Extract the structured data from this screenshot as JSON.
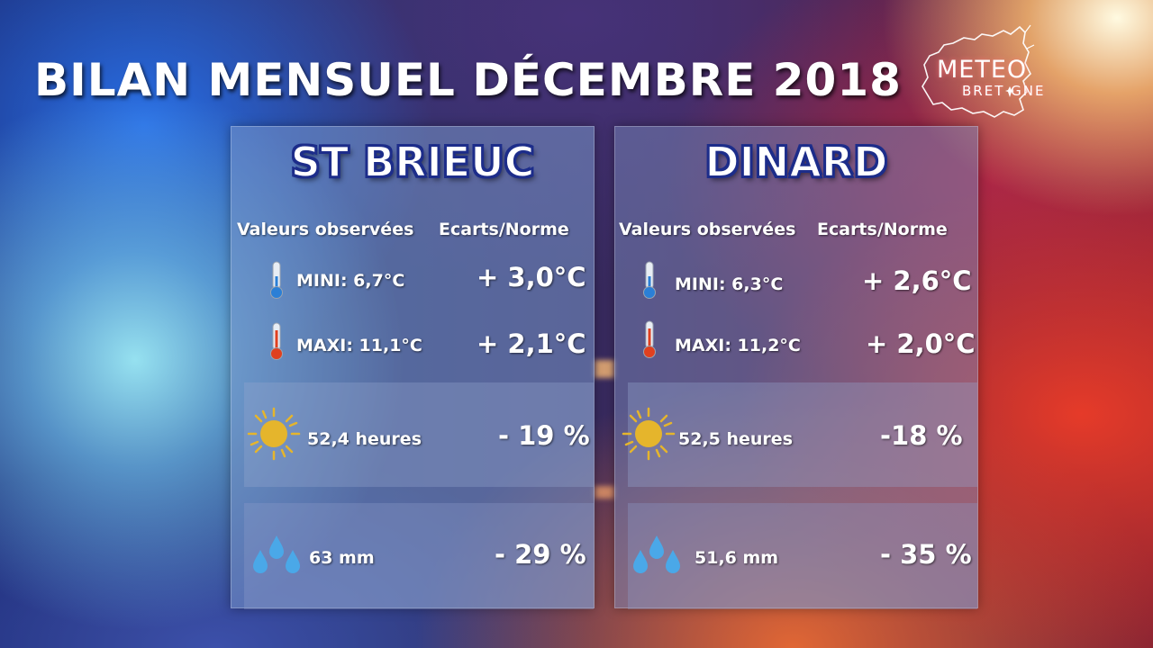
{
  "title": "BILAN MENSUEL DÉCEMBRE 2018",
  "logo": {
    "main": "METEO",
    "sub": "BRET GNE"
  },
  "headers": {
    "observed": "Valeurs observées",
    "deviation": "Ecarts/Norme"
  },
  "icons": {
    "thermo_min": "thermometer-cold-icon",
    "thermo_max": "thermometer-hot-icon",
    "sun": "sun-icon",
    "rain": "raindrops-icon"
  },
  "colors": {
    "city_outline": "#1d2d8a",
    "sun": "#e5b52c",
    "drop": "#4aa8e8"
  },
  "stations": [
    {
      "name": "ST BRIEUC",
      "min_label": "MINI:  6,7°C",
      "min_dev": "+ 3,0°C",
      "max_label": "MAXI: 11,1°C",
      "max_dev": "+  2,1°C",
      "sun_value": "52,4 heures",
      "sun_dev": "- 19 %",
      "rain_value": "63 mm",
      "rain_dev": "- 29 %"
    },
    {
      "name": "DINARD",
      "min_label": "MINI:  6,3°C",
      "min_dev": "+ 2,6°C",
      "max_label": "MAXI: 11,2°C",
      "max_dev": "+ 2,0°C",
      "sun_value": "52,5 heures",
      "sun_dev": "-18 %",
      "rain_value": "51,6 mm",
      "rain_dev": "- 35 %"
    }
  ]
}
